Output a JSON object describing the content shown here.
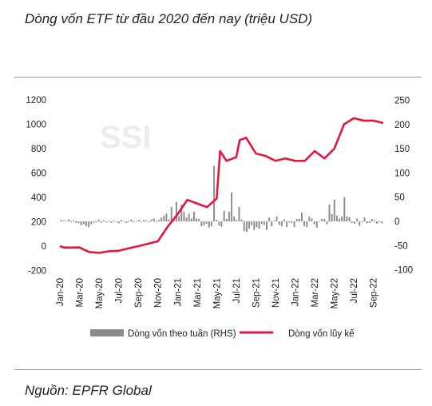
{
  "title": "Dòng vốn ETF từ đầu 2020 đến nay (triệu USD)",
  "source": "Nguồn: EPFR Global",
  "watermark": "SSI",
  "colors": {
    "bars": "#8c8c8c",
    "line": "#e3173e",
    "rules": "#9a9a9a"
  },
  "chart_data": {
    "type": "bar+line",
    "legend_position": "bottom",
    "grid": false,
    "x_tick_labels": [
      "Jan-20",
      "Mar-20",
      "May-20",
      "Jul-20",
      "Sep-20",
      "Nov-20",
      "Jan-21",
      "Mar-21",
      "May-21",
      "Jul-21",
      "Sep-21",
      "Nov-21",
      "Jan-22",
      "Mar-22",
      "May-22",
      "Jul-22",
      "Sep-22"
    ],
    "y_left": {
      "ticks": [
        1200,
        1000,
        800,
        600,
        400,
        200,
        0,
        -200
      ],
      "range": [
        -200,
        1200
      ]
    },
    "y_right": {
      "ticks": [
        250,
        200,
        150,
        100,
        50,
        0,
        -50,
        -100
      ],
      "range": [
        -100,
        250
      ]
    },
    "series": [
      {
        "name": "Dòng vốn theo tuần (RHS)",
        "type": "bar",
        "axis": "right",
        "values": [
          3,
          2,
          1,
          4,
          -2,
          2,
          -3,
          -4,
          -8,
          -6,
          -10,
          -12,
          -6,
          -3,
          -2,
          4,
          -3,
          2,
          -2,
          1,
          -3,
          2,
          -1,
          -4,
          3,
          1,
          -3,
          2,
          4,
          -2,
          1,
          3,
          -1,
          3,
          2,
          -2,
          4,
          6,
          -2,
          3,
          8,
          12,
          16,
          4,
          30,
          5,
          40,
          10,
          35,
          20,
          8,
          16,
          6,
          20,
          6,
          5,
          -10,
          -8,
          -5,
          -13,
          -10,
          115,
          3,
          -9,
          -11,
          22,
          5,
          20,
          60,
          10,
          3,
          30,
          4,
          -20,
          -22,
          -15,
          -8,
          -18,
          -12,
          -15,
          -5,
          -7,
          -18,
          8,
          -10,
          2,
          10,
          -7,
          -10,
          4,
          -12,
          -2,
          -3,
          -12,
          5,
          5,
          18,
          -10,
          -12,
          10,
          6,
          -6,
          -13,
          1,
          5,
          5,
          -6,
          35,
          15,
          45,
          12,
          6,
          10,
          50,
          10,
          9,
          -3,
          -5,
          6,
          -9,
          -2,
          8,
          -4,
          -3,
          5,
          2,
          -5,
          -2,
          -4
        ],
        "approx_peaks": {
          "May-21": 115,
          "Aug-22": 50
        }
      },
      {
        "name": "Dòng vốn lũy kế",
        "type": "line",
        "axis": "left",
        "points": [
          [
            "Jan-20",
            0
          ],
          [
            "Jan-20",
            -10
          ],
          [
            "Feb-20",
            -12
          ],
          [
            "Mar-20",
            -10
          ],
          [
            "Mar-20",
            -25
          ],
          [
            "Apr-20",
            -48
          ],
          [
            "May-20",
            -55
          ],
          [
            "Jun-20",
            -42
          ],
          [
            "Jul-20",
            -38
          ],
          [
            "Aug-20",
            -18
          ],
          [
            "Sep-20",
            0
          ],
          [
            "Oct-20",
            20
          ],
          [
            "Nov-20",
            40
          ],
          [
            "Dec-20",
            160
          ],
          [
            "Jan-21",
            260
          ],
          [
            "Feb-21",
            380
          ],
          [
            "Mar-21",
            350
          ],
          [
            "Apr-21",
            320
          ],
          [
            "May-21",
            390
          ],
          [
            "May-21",
            780
          ],
          [
            "Jun-21",
            700
          ],
          [
            "Jul-21",
            730
          ],
          [
            "Jul-21",
            870
          ],
          [
            "Aug-21",
            890
          ],
          [
            "Sep-21",
            760
          ],
          [
            "Oct-21",
            740
          ],
          [
            "Nov-21",
            700
          ],
          [
            "Dec-21",
            720
          ],
          [
            "Jan-22",
            700
          ],
          [
            "Feb-22",
            700
          ],
          [
            "Mar-22",
            780
          ],
          [
            "Apr-22",
            720
          ],
          [
            "May-22",
            800
          ],
          [
            "Jun-22",
            1000
          ],
          [
            "Jul-22",
            1050
          ],
          [
            "Aug-22",
            1030
          ],
          [
            "Sep-22",
            1030
          ],
          [
            "Oct-22",
            1010
          ]
        ]
      }
    ]
  }
}
